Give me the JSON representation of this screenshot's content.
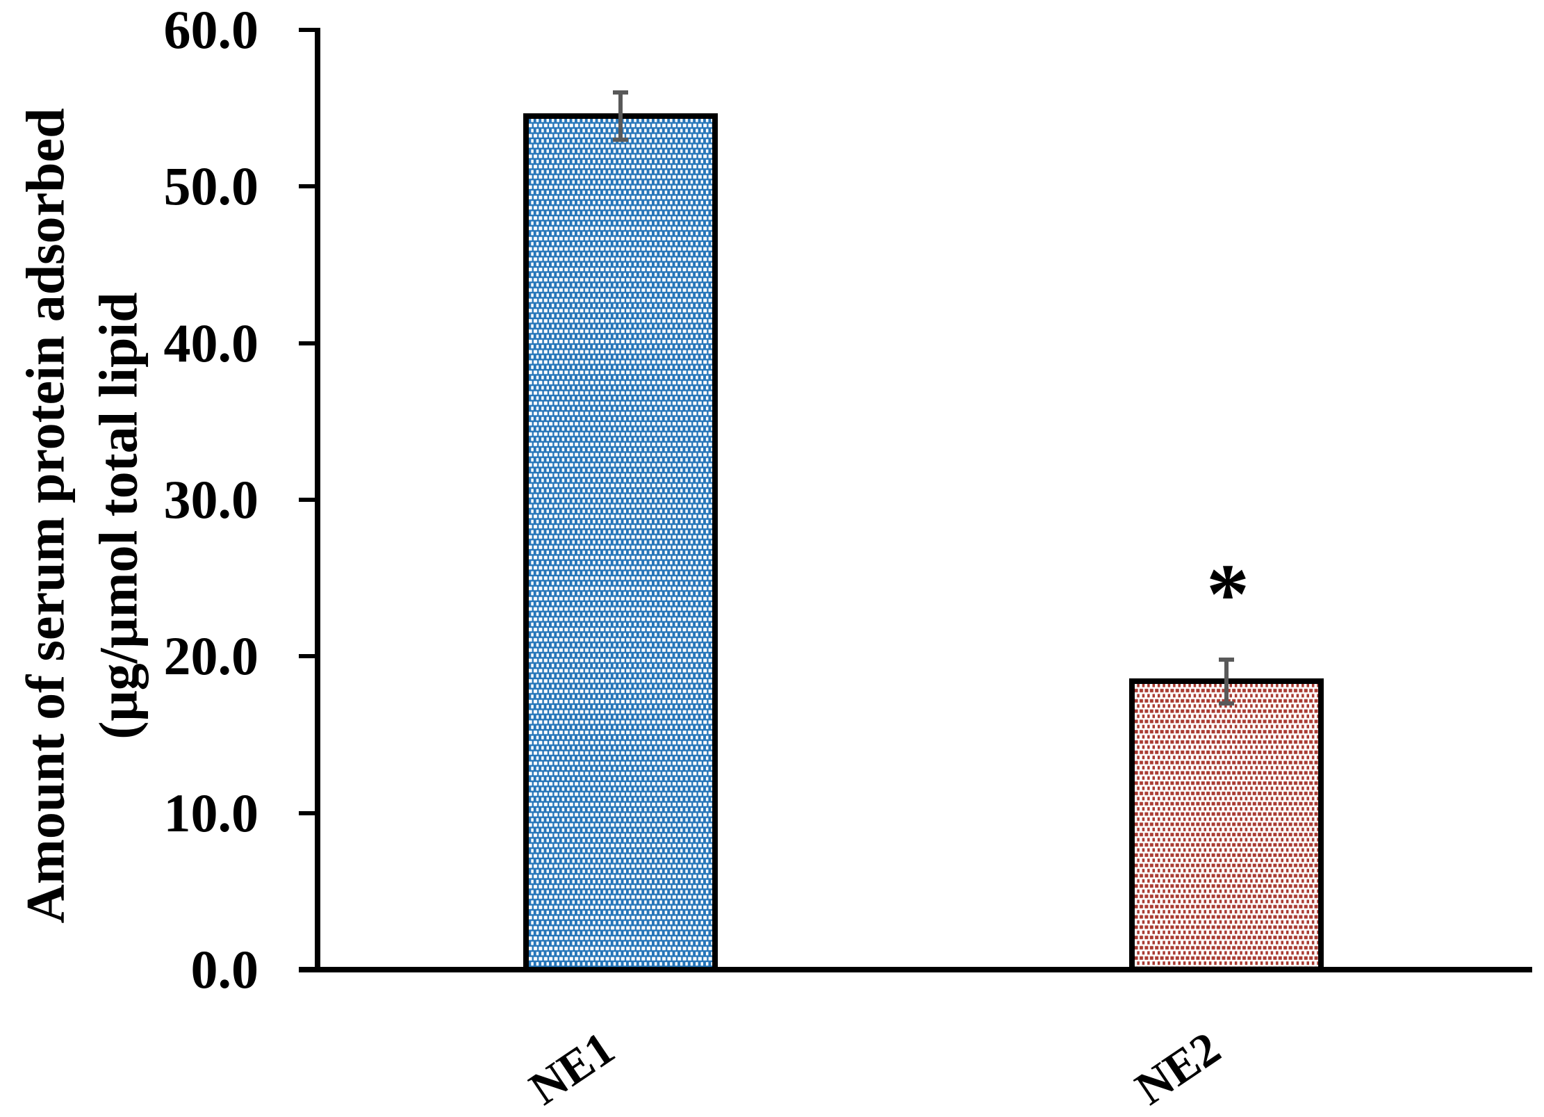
{
  "chart_data": {
    "type": "bar",
    "categories": [
      "NE1",
      "NE2"
    ],
    "values": [
      54.5,
      18.4
    ],
    "errors": [
      1.5,
      1.4
    ],
    "significance": [
      "",
      "*"
    ],
    "title": "",
    "xlabel": "",
    "ylabel_line1": "Amount of serum protein adsorbed",
    "ylabel_line2": "(μg/μmol total lipid",
    "ylim": [
      0,
      60
    ],
    "ytick_step": 10,
    "ytick_labels": [
      "0.0",
      "10.0",
      "20.0",
      "30.0",
      "40.0",
      "50.0",
      "60.0"
    ],
    "grid": false,
    "legend": "none",
    "bar_styles": [
      {
        "name": "NE1",
        "pattern": "small-checker-dots",
        "background": "#2776B9",
        "dot": "#FFFFFF"
      },
      {
        "name": "NE2",
        "pattern": "small-checker-dots",
        "background": "#FFFFFF",
        "dot": "#A93B32"
      }
    ]
  },
  "colors": {
    "bar_border": "#000000",
    "error_bar": "#595959",
    "axis": "#000000",
    "text": "#000000",
    "background": "#FFFFFF"
  }
}
